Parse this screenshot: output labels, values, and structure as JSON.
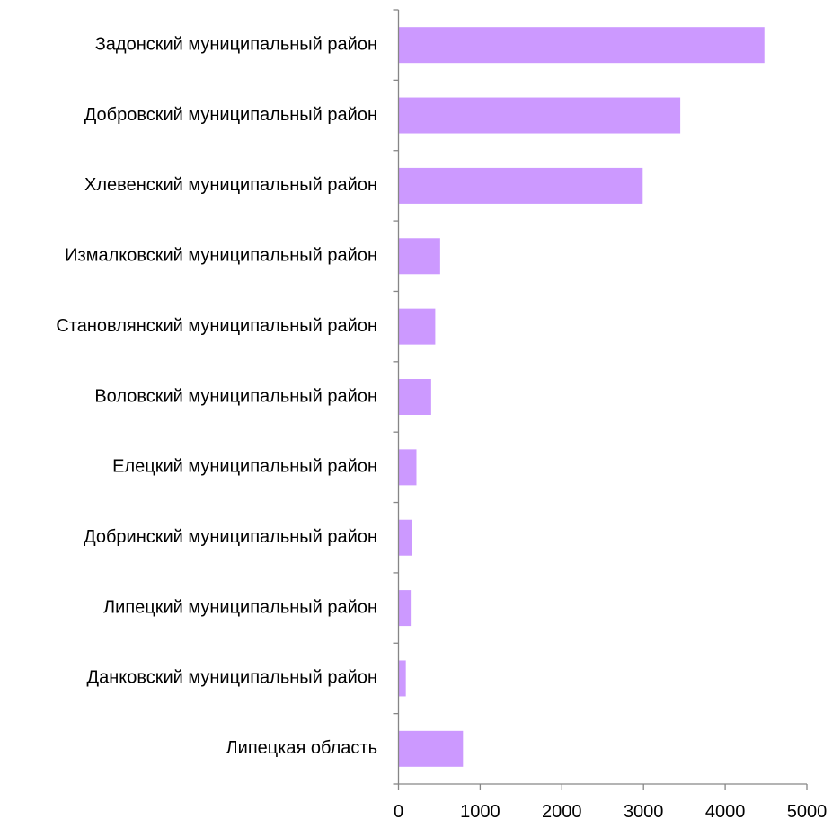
{
  "chart_data": {
    "type": "bar",
    "orientation": "horizontal",
    "title": "",
    "xlabel": "",
    "ylabel": "",
    "categories": [
      "Задонский муниципальный район",
      "Добровский муниципальный район",
      "Хлевенский муниципальный район",
      "Измалковский муниципальный район",
      "Становлянский муниципальный район",
      "Воловский муниципальный район",
      "Елецкий муниципальный район",
      "Добринский муниципальный район",
      "Липецкий муниципальный район",
      "Данковский муниципальный район",
      "Липецкая область"
    ],
    "values": [
      4480,
      3450,
      2990,
      510,
      450,
      400,
      220,
      160,
      150,
      90,
      790
    ],
    "xlim": [
      0,
      5000
    ],
    "xticks": [
      "0",
      "1000",
      "2000",
      "3000",
      "4000",
      "5000"
    ],
    "grid": false,
    "legend": "none",
    "bar_color": "#CC99FF",
    "axis_color": "#868686"
  }
}
